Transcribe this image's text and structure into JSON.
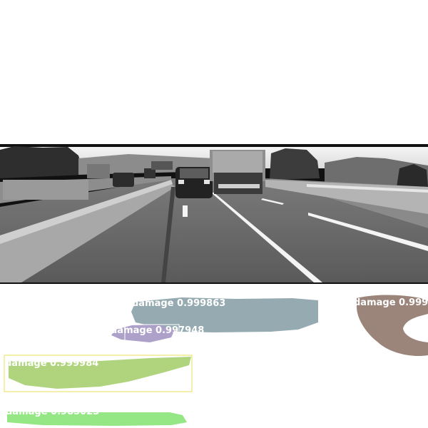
{
  "detections": [
    {
      "class": "damage",
      "score": "0.999863",
      "label": "damage 0.999863",
      "color": "#8fa7ad"
    },
    {
      "class": "damage",
      "score": "0.997948",
      "label": "damage 0.997948",
      "color": "#a99bc6"
    },
    {
      "class": "damage",
      "score": "0.999",
      "label": "damage 0.999",
      "color": "#9b857b"
    },
    {
      "class": "damage",
      "score": "0.999984",
      "label": "damage 0.999984",
      "color": "#acd277"
    },
    {
      "class": "damage",
      "score": "0.985023",
      "label": "damage 0.985023",
      "color": "#8fe57e"
    }
  ],
  "colors": {
    "background": "#ffffff",
    "box_outline": "#e8e05a"
  }
}
